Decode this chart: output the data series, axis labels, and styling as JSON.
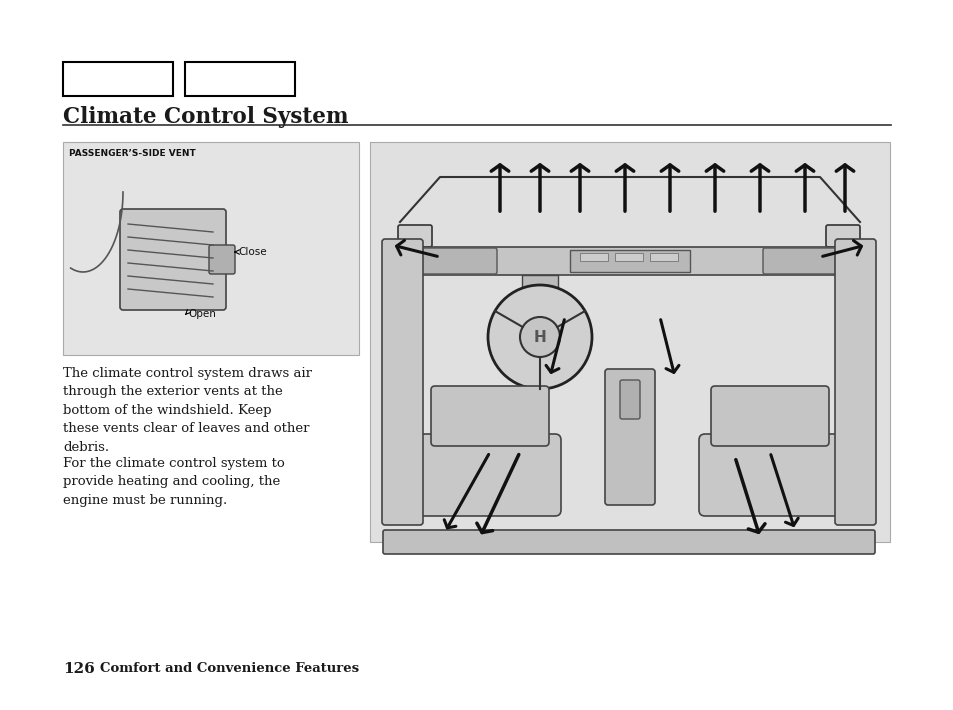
{
  "title": "Climate Control System",
  "page_number": "126",
  "page_footer": "Comfort and Convenience Features",
  "background_color": "#ffffff",
  "left_image_label": "PASSENGER’S-SIDE VENT",
  "left_image_bg": "#e4e4e4",
  "right_image_bg": "#e0e0e0",
  "paragraph1": "The climate control system draws air\nthrough the exterior vents at the\nbottom of the windshield. Keep\nthese vents clear of leaves and other\ndebris.",
  "paragraph2": "For the climate control system to\nprovide heating and cooling, the\nengine must be running.",
  "left_close_label": "Close",
  "left_open_label": "Open",
  "header_line_color": "#333333",
  "text_color": "#1a1a1a",
  "image_border_color": "#aaaaaa"
}
